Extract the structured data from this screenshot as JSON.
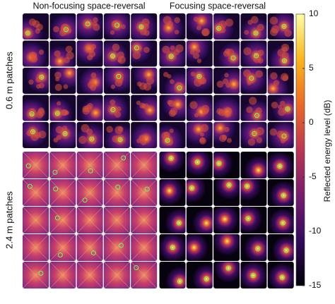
{
  "chart_data": {
    "type": "heatmap",
    "panel_titles": [
      "Non-focusing space-reversal",
      "Focusing space-reversal"
    ],
    "row_labels": [
      "0.6 m patches",
      "2.4 m patches"
    ],
    "colorbar_label": "Reflected energy level (dB)",
    "clim": [
      -15,
      10
    ],
    "cticks": [
      10,
      5,
      0,
      -5,
      -10,
      -15
    ],
    "colormap": [
      "#000004",
      "#320a5e",
      "#781c6d",
      "#bc3754",
      "#ed6925",
      "#fbb61a",
      "#fcffa4"
    ]
  }
}
